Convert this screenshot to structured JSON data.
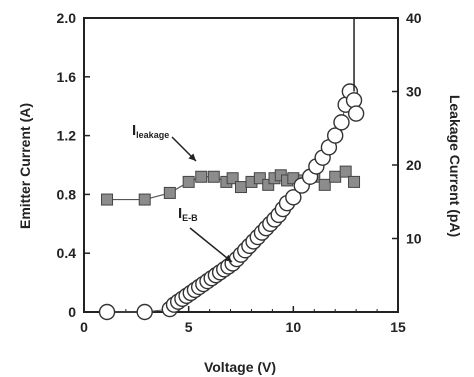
{
  "chart_data": {
    "type": "scatter",
    "xlabel": "Voltage (V)",
    "ylabel": "Emitter Current (A)",
    "y2label": "Leakage Current (pA)",
    "xlim": [
      0,
      15
    ],
    "ylim": [
      0,
      2.0
    ],
    "y2lim": [
      0,
      40
    ],
    "xticks": [
      "0",
      "5",
      "10",
      "15"
    ],
    "yticks": [
      "0",
      "0.4",
      "0.8",
      "1.2",
      "1.6",
      "2.0"
    ],
    "y2ticks": [
      "10",
      "20",
      "30",
      "40"
    ],
    "grid": false,
    "series": [
      {
        "name_main": "I",
        "name_sub": "leakage",
        "axis": "right",
        "marker": "square",
        "x": [
          1.1,
          2.9,
          4.1,
          5.0,
          5.6,
          6.2,
          6.8,
          7.1,
          7.5,
          8.0,
          8.4,
          8.8,
          9.1,
          9.4,
          9.7,
          10.0,
          10.5,
          11.0,
          11.5,
          12.0,
          12.5,
          12.9
        ],
        "y": [
          15.3,
          15.3,
          16.2,
          17.7,
          18.4,
          18.4,
          17.7,
          18.2,
          17.0,
          17.7,
          18.2,
          17.3,
          18.2,
          18.6,
          17.9,
          18.2,
          17.9,
          18.4,
          17.3,
          18.4,
          19.1,
          17.7
        ]
      },
      {
        "name_main": "I",
        "name_sub": "E-B",
        "axis": "left",
        "marker": "circle",
        "x": [
          1.1,
          2.9,
          4.1,
          4.3,
          4.5,
          4.7,
          4.9,
          5.1,
          5.3,
          5.5,
          5.7,
          5.9,
          6.1,
          6.3,
          6.5,
          6.7,
          6.9,
          7.1,
          7.3,
          7.5,
          7.7,
          7.9,
          8.1,
          8.3,
          8.5,
          8.7,
          8.9,
          9.1,
          9.3,
          9.5,
          9.7,
          10.0,
          10.4,
          10.8,
          11.1,
          11.4,
          11.7,
          12.0,
          12.3,
          12.5,
          12.7,
          12.9,
          13.0
        ],
        "y": [
          0.0,
          0.0,
          0.02,
          0.05,
          0.07,
          0.09,
          0.11,
          0.13,
          0.15,
          0.17,
          0.19,
          0.21,
          0.23,
          0.25,
          0.27,
          0.29,
          0.31,
          0.33,
          0.36,
          0.39,
          0.42,
          0.45,
          0.48,
          0.51,
          0.54,
          0.57,
          0.6,
          0.63,
          0.66,
          0.7,
          0.74,
          0.78,
          0.86,
          0.92,
          0.99,
          1.05,
          1.12,
          1.2,
          1.29,
          1.41,
          1.5,
          1.44,
          1.35
        ]
      }
    ],
    "vertical_line": {
      "x": 12.9,
      "y_from": 1.5,
      "y_to": 2.0
    }
  }
}
